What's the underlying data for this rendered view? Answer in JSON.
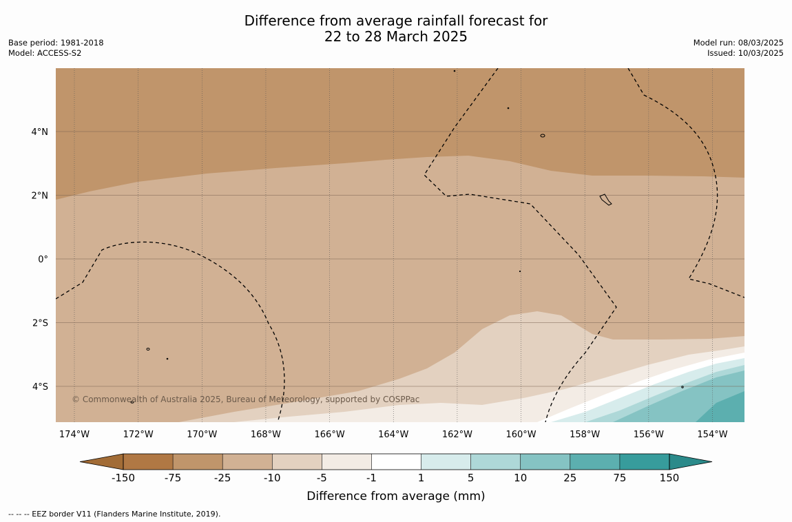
{
  "title_line1": "Difference from average rainfall forecast for",
  "title_line2": "22 to 28 March 2025",
  "meta_left": {
    "base_period": "Base period: 1981-2018",
    "model": "Model: ACCESS-S2"
  },
  "meta_right": {
    "model_run": "Model run: 08/03/2025",
    "issued": "Issued: 10/03/2025"
  },
  "copyright": "© Commonwealth of Australia 2025, Bureau of Meteorology, supported by COSPPac",
  "lat_labels": [
    "4°N",
    "2°N",
    "0°",
    "2°S",
    "4°S"
  ],
  "lon_labels": [
    "174°W",
    "172°W",
    "170°W",
    "168°W",
    "166°W",
    "164°W",
    "162°W",
    "160°W",
    "158°W",
    "156°W",
    "154°W"
  ],
  "colorbar": {
    "tick_labels": [
      "-150",
      "-75",
      "-25",
      "-10",
      "-5",
      "-1",
      "1",
      "5",
      "10",
      "25",
      "75",
      "150"
    ],
    "colors": [
      "#a26c36",
      "#b07844",
      "#c0956b",
      "#d1b194",
      "#e3d1c0",
      "#f3ece5",
      "#ffffff",
      "#d7ecec",
      "#aed8d8",
      "#85c3c3",
      "#5cafaf",
      "#379c9c",
      "#2b8a8a"
    ],
    "label": "Difference from average (mm)"
  },
  "footnote": "--  --  -- EEZ border V11 (Flanders Marine Institute, 2019)."
}
